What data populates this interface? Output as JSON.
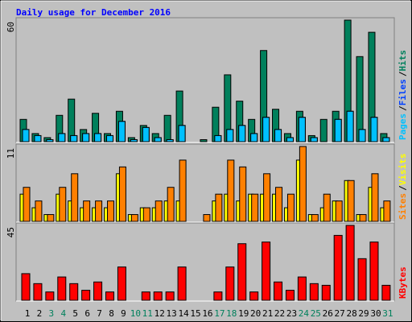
{
  "title": "Daily usage for December 2016",
  "separator": "/",
  "chart_data": [
    {
      "type": "bar",
      "ylim": [
        0,
        60
      ],
      "series": [
        {
          "name": "Hits",
          "color": "#00805c",
          "values": [
            11,
            4,
            2,
            13,
            21,
            6,
            14,
            4,
            15,
            2,
            8,
            4,
            13,
            25,
            0,
            1,
            17,
            33,
            20,
            11,
            45,
            16,
            4,
            15,
            3,
            11,
            15,
            60,
            42,
            54,
            4
          ]
        },
        {
          "name": "Files",
          "color": "#0040ff",
          "values": [
            6,
            3,
            1,
            4,
            3,
            4,
            4,
            3,
            10,
            1,
            7,
            2,
            1,
            8,
            0,
            0,
            3,
            6,
            8,
            4,
            12,
            6,
            2,
            12,
            2,
            0,
            11,
            15,
            6,
            12,
            2
          ]
        },
        {
          "name": "Pages",
          "color": "#00c0ff",
          "values": [
            6,
            3,
            1,
            4,
            3,
            4,
            4,
            3,
            10,
            1,
            7,
            2,
            1,
            8,
            0,
            0,
            3,
            6,
            8,
            4,
            12,
            6,
            2,
            12,
            2,
            0,
            11,
            15,
            6,
            12,
            2
          ]
        }
      ]
    },
    {
      "type": "bar",
      "ylim": [
        0,
        11
      ],
      "series": [
        {
          "name": "Visits",
          "color": "#ffff00",
          "values": [
            4,
            2,
            1,
            4,
            3,
            2,
            2,
            2,
            7,
            1,
            2,
            2,
            3,
            3,
            0,
            0,
            3,
            4,
            3,
            4,
            4,
            4,
            2,
            9,
            1,
            2,
            3,
            6,
            1,
            5,
            2
          ]
        },
        {
          "name": "Sites",
          "color": "#ff8000",
          "values": [
            5,
            3,
            1,
            5,
            7,
            3,
            3,
            3,
            8,
            1,
            2,
            3,
            5,
            9,
            0,
            1,
            4,
            9,
            8,
            4,
            7,
            5,
            4,
            11,
            1,
            4,
            3,
            6,
            1,
            7,
            3
          ]
        }
      ]
    },
    {
      "type": "bar",
      "ylim": [
        0,
        45
      ],
      "series": [
        {
          "name": "KBytes",
          "color": "#ff0000",
          "values": [
            16,
            10,
            5,
            14,
            10,
            6,
            11,
            5,
            20,
            0,
            5,
            5,
            5,
            20,
            0,
            0,
            5,
            20,
            34,
            5,
            35,
            11,
            6,
            14,
            10,
            9,
            39,
            45,
            25,
            35,
            9
          ]
        }
      ],
      "categories": [
        "1",
        "2",
        "3",
        "4",
        "5",
        "6",
        "7",
        "8",
        "9",
        "10",
        "11",
        "12",
        "13",
        "14",
        "15",
        "16",
        "17",
        "18",
        "19",
        "20",
        "21",
        "22",
        "23",
        "24",
        "25",
        "26",
        "27",
        "28",
        "29",
        "30",
        "31"
      ],
      "highlight": [
        2,
        3,
        9,
        10,
        16,
        17,
        23,
        24,
        30
      ],
      "highlight_color": "#00805c"
    }
  ]
}
